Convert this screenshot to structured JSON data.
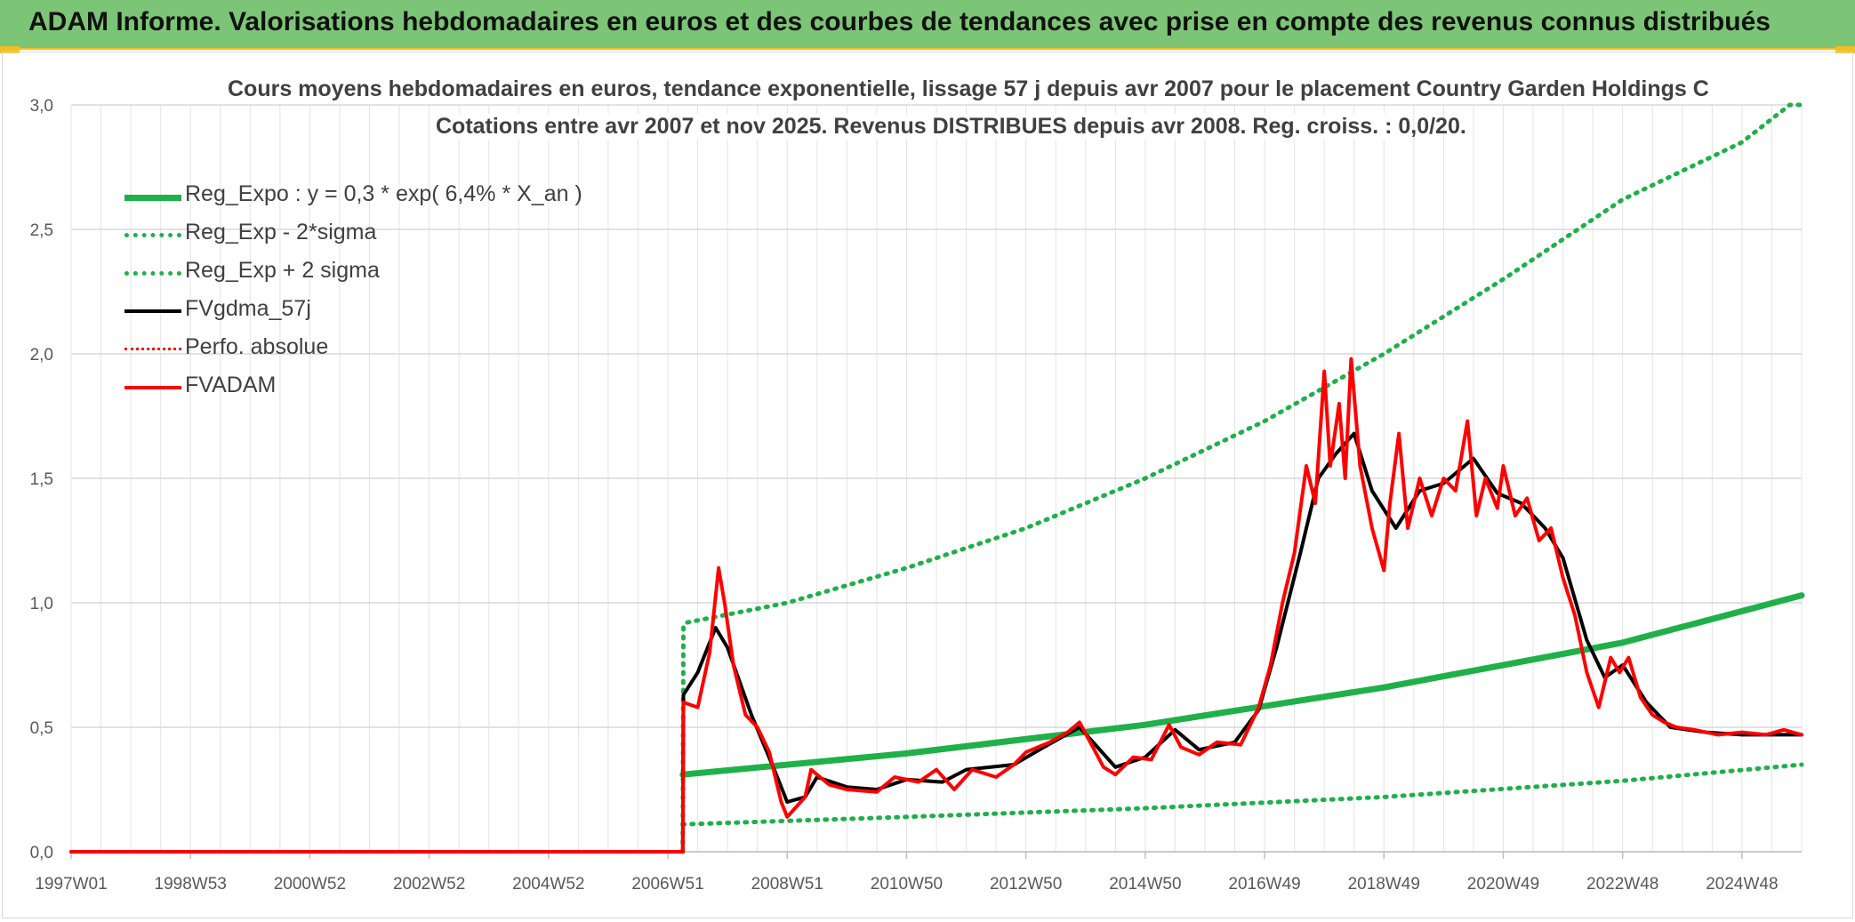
{
  "header": {
    "title": "ADAM Informe. Valorisations hebdomadaires en euros et des courbes de tendances avec prise en compte des revenus connus distribués"
  },
  "chart_data": {
    "type": "line",
    "title": "Cours moyens hebdomadaires en euros, tendance exponentielle, lissage 57 j depuis avr 2007 pour le placement Country Garden Holdings C",
    "subtitle": "Cotations entre avr 2007 et nov 2025. Revenus DISTRIBUES depuis avr 2008. Reg. croiss. : 0,0/20.",
    "xlabel": "",
    "ylabel": "",
    "ylim": [
      0,
      3
    ],
    "yticks": [
      "0,0",
      "0,5",
      "1,0",
      "1,5",
      "2,0",
      "2,5",
      "3,0"
    ],
    "xlim": [
      1997.0,
      2026.0
    ],
    "xticks": [
      {
        "label": "1997W01",
        "x": 1997.0
      },
      {
        "label": "1998W53",
        "x": 1999.0
      },
      {
        "label": "2000W52",
        "x": 2001.0
      },
      {
        "label": "2002W52",
        "x": 2003.0
      },
      {
        "label": "2004W52",
        "x": 2005.0
      },
      {
        "label": "2006W51",
        "x": 2007.0
      },
      {
        "label": "2008W51",
        "x": 2009.0
      },
      {
        "label": "2010W50",
        "x": 2011.0
      },
      {
        "label": "2012W50",
        "x": 2013.0
      },
      {
        "label": "2014W50",
        "x": 2015.0
      },
      {
        "label": "2016W49",
        "x": 2017.0
      },
      {
        "label": "2018W49",
        "x": 2019.0
      },
      {
        "label": "2020W49",
        "x": 2021.0
      },
      {
        "label": "2022W48",
        "x": 2023.0
      },
      {
        "label": "2024W48",
        "x": 2025.0
      }
    ],
    "grid": true,
    "legend_position": "top-left",
    "series": [
      {
        "name": "Reg_Expo : y = 0,3 * exp( 6,4% *  X_an )",
        "color": "#1fb04a",
        "style": "solid",
        "points": [
          [
            2007.25,
            0.31
          ],
          [
            2011.0,
            0.395
          ],
          [
            2015.0,
            0.51
          ],
          [
            2019.0,
            0.66
          ],
          [
            2023.0,
            0.84
          ],
          [
            2026.0,
            1.03
          ]
        ]
      },
      {
        "name": "Reg_Exp - 2*sigma",
        "color": "#1fb04a",
        "style": "dotted",
        "points": [
          [
            2007.25,
            0.11
          ],
          [
            2011.0,
            0.14
          ],
          [
            2015.0,
            0.175
          ],
          [
            2019.0,
            0.22
          ],
          [
            2023.0,
            0.285
          ],
          [
            2026.0,
            0.35
          ]
        ]
      },
      {
        "name": "Reg_Exp + 2 sigma",
        "color": "#1fb04a",
        "style": "dotted",
        "points": [
          [
            2007.25,
            0.0
          ],
          [
            2007.26,
            0.9
          ],
          [
            2007.3,
            0.92
          ],
          [
            2009.0,
            1.0
          ],
          [
            2011.0,
            1.14
          ],
          [
            2013.0,
            1.3
          ],
          [
            2015.0,
            1.5
          ],
          [
            2017.0,
            1.73
          ],
          [
            2019.0,
            2.0
          ],
          [
            2021.0,
            2.3
          ],
          [
            2023.0,
            2.62
          ],
          [
            2025.0,
            2.85
          ],
          [
            2025.8,
            3.0
          ],
          [
            2026.0,
            3.0
          ]
        ]
      },
      {
        "name": "FVgdma_57j",
        "color": "#000000",
        "style": "solid",
        "points": [
          [
            1997.0,
            0.0
          ],
          [
            2007.25,
            0.0
          ],
          [
            2007.26,
            0.63
          ],
          [
            2007.5,
            0.72
          ],
          [
            2007.8,
            0.9
          ],
          [
            2008.0,
            0.82
          ],
          [
            2008.4,
            0.55
          ],
          [
            2008.8,
            0.32
          ],
          [
            2009.0,
            0.2
          ],
          [
            2009.3,
            0.22
          ],
          [
            2009.5,
            0.3
          ],
          [
            2010.0,
            0.26
          ],
          [
            2010.5,
            0.25
          ],
          [
            2011.0,
            0.29
          ],
          [
            2011.6,
            0.28
          ],
          [
            2012.0,
            0.33
          ],
          [
            2012.8,
            0.35
          ],
          [
            2013.3,
            0.42
          ],
          [
            2013.9,
            0.5
          ],
          [
            2014.2,
            0.42
          ],
          [
            2014.5,
            0.34
          ],
          [
            2015.0,
            0.38
          ],
          [
            2015.5,
            0.49
          ],
          [
            2015.9,
            0.41
          ],
          [
            2016.5,
            0.44
          ],
          [
            2016.9,
            0.57
          ],
          [
            2017.2,
            0.82
          ],
          [
            2017.6,
            1.2
          ],
          [
            2017.9,
            1.5
          ],
          [
            2018.2,
            1.6
          ],
          [
            2018.5,
            1.68
          ],
          [
            2018.8,
            1.45
          ],
          [
            2019.2,
            1.3
          ],
          [
            2019.6,
            1.45
          ],
          [
            2020.0,
            1.48
          ],
          [
            2020.5,
            1.58
          ],
          [
            2020.9,
            1.44
          ],
          [
            2021.3,
            1.4
          ],
          [
            2021.7,
            1.3
          ],
          [
            2022.0,
            1.18
          ],
          [
            2022.4,
            0.85
          ],
          [
            2022.7,
            0.7
          ],
          [
            2023.0,
            0.75
          ],
          [
            2023.4,
            0.6
          ],
          [
            2023.8,
            0.5
          ],
          [
            2024.4,
            0.48
          ],
          [
            2025.0,
            0.47
          ],
          [
            2025.8,
            0.47
          ],
          [
            2026.0,
            0.47
          ]
        ]
      },
      {
        "name": "Perfo. absolue",
        "color": "#ff0000",
        "style": "dotted",
        "points": [
          [
            1997.0,
            0.0
          ],
          [
            2007.25,
            0.0
          ],
          [
            2007.26,
            0.6
          ],
          [
            2008.0,
            1.0
          ],
          [
            2009.0,
            0.2
          ],
          [
            2013.9,
            0.52
          ],
          [
            2015.5,
            0.5
          ],
          [
            2017.0,
            0.58
          ],
          [
            2018.5,
            1.95
          ],
          [
            2020.5,
            1.7
          ],
          [
            2022.4,
            0.8
          ],
          [
            2023.8,
            0.49
          ],
          [
            2026.0,
            0.48
          ]
        ]
      },
      {
        "name": "FVADAM",
        "color": "#ff0000",
        "style": "solid",
        "points": [
          [
            1997.0,
            0.0
          ],
          [
            2007.25,
            0.0
          ],
          [
            2007.26,
            0.6
          ],
          [
            2007.5,
            0.58
          ],
          [
            2007.7,
            0.8
          ],
          [
            2007.85,
            1.14
          ],
          [
            2007.95,
            1.0
          ],
          [
            2008.1,
            0.75
          ],
          [
            2008.3,
            0.55
          ],
          [
            2008.5,
            0.5
          ],
          [
            2008.7,
            0.4
          ],
          [
            2008.9,
            0.2
          ],
          [
            2009.0,
            0.14
          ],
          [
            2009.15,
            0.18
          ],
          [
            2009.3,
            0.22
          ],
          [
            2009.4,
            0.33
          ],
          [
            2009.7,
            0.27
          ],
          [
            2010.0,
            0.25
          ],
          [
            2010.5,
            0.24
          ],
          [
            2010.8,
            0.3
          ],
          [
            2011.2,
            0.28
          ],
          [
            2011.5,
            0.33
          ],
          [
            2011.8,
            0.25
          ],
          [
            2012.1,
            0.33
          ],
          [
            2012.5,
            0.3
          ],
          [
            2012.8,
            0.35
          ],
          [
            2013.0,
            0.4
          ],
          [
            2013.4,
            0.44
          ],
          [
            2013.7,
            0.48
          ],
          [
            2013.9,
            0.52
          ],
          [
            2014.1,
            0.43
          ],
          [
            2014.3,
            0.34
          ],
          [
            2014.5,
            0.31
          ],
          [
            2014.8,
            0.38
          ],
          [
            2015.1,
            0.37
          ],
          [
            2015.4,
            0.51
          ],
          [
            2015.6,
            0.42
          ],
          [
            2015.9,
            0.39
          ],
          [
            2016.2,
            0.44
          ],
          [
            2016.6,
            0.43
          ],
          [
            2016.9,
            0.58
          ],
          [
            2017.1,
            0.75
          ],
          [
            2017.3,
            1.0
          ],
          [
            2017.5,
            1.2
          ],
          [
            2017.7,
            1.55
          ],
          [
            2017.85,
            1.4
          ],
          [
            2018.0,
            1.93
          ],
          [
            2018.1,
            1.55
          ],
          [
            2018.25,
            1.8
          ],
          [
            2018.35,
            1.5
          ],
          [
            2018.45,
            1.98
          ],
          [
            2018.6,
            1.55
          ],
          [
            2018.8,
            1.3
          ],
          [
            2019.0,
            1.13
          ],
          [
            2019.1,
            1.4
          ],
          [
            2019.25,
            1.68
          ],
          [
            2019.4,
            1.3
          ],
          [
            2019.6,
            1.5
          ],
          [
            2019.8,
            1.35
          ],
          [
            2020.0,
            1.5
          ],
          [
            2020.2,
            1.45
          ],
          [
            2020.4,
            1.73
          ],
          [
            2020.55,
            1.35
          ],
          [
            2020.7,
            1.5
          ],
          [
            2020.9,
            1.38
          ],
          [
            2021.0,
            1.55
          ],
          [
            2021.2,
            1.35
          ],
          [
            2021.4,
            1.42
          ],
          [
            2021.6,
            1.25
          ],
          [
            2021.8,
            1.3
          ],
          [
            2022.0,
            1.1
          ],
          [
            2022.2,
            0.95
          ],
          [
            2022.4,
            0.72
          ],
          [
            2022.6,
            0.58
          ],
          [
            2022.8,
            0.78
          ],
          [
            2022.95,
            0.72
          ],
          [
            2023.1,
            0.78
          ],
          [
            2023.3,
            0.62
          ],
          [
            2023.5,
            0.55
          ],
          [
            2023.7,
            0.52
          ],
          [
            2023.9,
            0.5
          ],
          [
            2024.2,
            0.49
          ],
          [
            2024.6,
            0.47
          ],
          [
            2025.0,
            0.48
          ],
          [
            2025.4,
            0.47
          ],
          [
            2025.7,
            0.49
          ],
          [
            2026.0,
            0.47
          ]
        ]
      }
    ]
  }
}
